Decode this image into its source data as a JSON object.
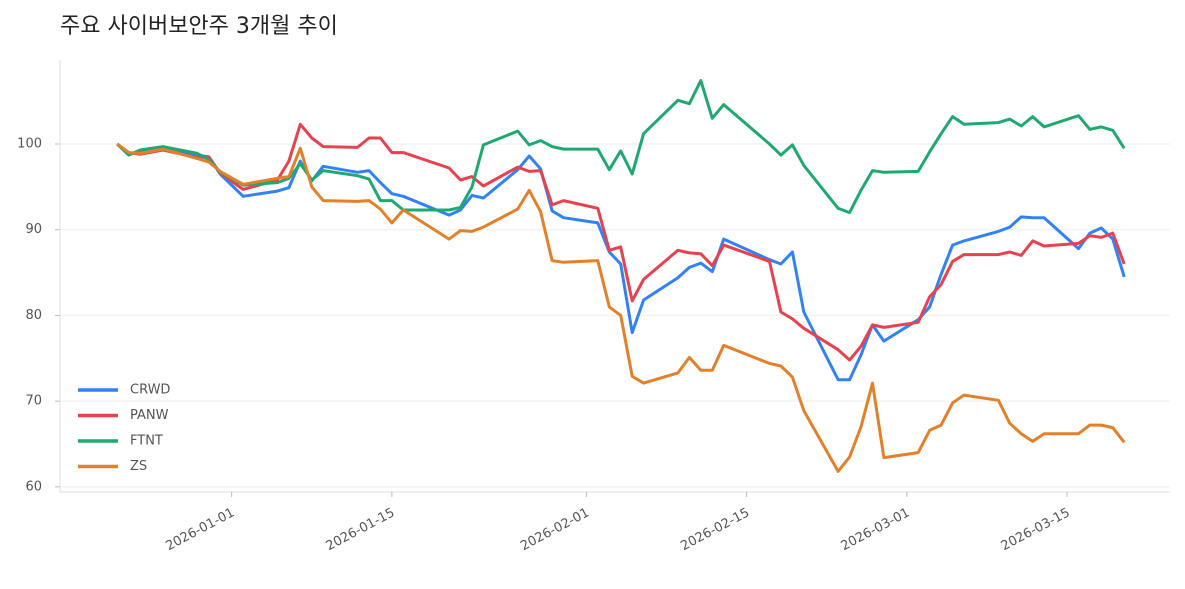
{
  "chart_data": {
    "type": "line",
    "title": "주요 사이버보안주 3개월 추이",
    "x": [
      "2025-12-22",
      "2025-12-23",
      "2025-12-24",
      "2025-12-26",
      "2025-12-29",
      "2025-12-30",
      "2025-12-31",
      "2026-01-02",
      "2026-01-05",
      "2026-01-06",
      "2026-01-07",
      "2026-01-08",
      "2026-01-09",
      "2026-01-12",
      "2026-01-13",
      "2026-01-14",
      "2026-01-15",
      "2026-01-16",
      "2026-01-20",
      "2026-01-21",
      "2026-01-22",
      "2026-01-23",
      "2026-01-26",
      "2026-01-27",
      "2026-01-28",
      "2026-01-29",
      "2026-01-30",
      "2026-02-02",
      "2026-02-03",
      "2026-02-04",
      "2026-02-05",
      "2026-02-06",
      "2026-02-09",
      "2026-02-10",
      "2026-02-11",
      "2026-02-12",
      "2026-02-13",
      "2026-02-17",
      "2026-02-18",
      "2026-02-19",
      "2026-02-20",
      "2026-02-23",
      "2026-02-24",
      "2026-02-25",
      "2026-02-26",
      "2026-02-27",
      "2026-03-02",
      "2026-03-03",
      "2026-03-04",
      "2026-03-05",
      "2026-03-06",
      "2026-03-09",
      "2026-03-10",
      "2026-03-11",
      "2026-03-12",
      "2026-03-13",
      "2026-03-16",
      "2026-03-17",
      "2026-03-18",
      "2026-03-19",
      "2026-03-20"
    ],
    "series": [
      {
        "name": "CRWD",
        "color": "#3182f6",
        "values": [
          100,
          98.8,
          99.2,
          99.5,
          98.7,
          98.5,
          96.5,
          93.9,
          94.5,
          94.9,
          98.0,
          95.7,
          97.4,
          96.7,
          96.9,
          95.5,
          94.2,
          93.9,
          91.7,
          92.3,
          94.0,
          93.7,
          97.0,
          98.6,
          97.1,
          92.2,
          91.4,
          90.8,
          87.4,
          86.0,
          78.0,
          81.8,
          84.4,
          85.6,
          86.1,
          85.1,
          88.9,
          86.5,
          86.0,
          87.4,
          80.4,
          72.5,
          72.5,
          75.4,
          78.9,
          77.0,
          79.5,
          81.0,
          84.8,
          88.2,
          88.7,
          89.8,
          90.3,
          91.5,
          91.4,
          91.4,
          87.8,
          89.6,
          90.2,
          88.9,
          84.5
        ]
      },
      {
        "name": "PANW",
        "color": "#e8414f",
        "values": [
          100,
          99.0,
          98.8,
          99.3,
          98.4,
          98.5,
          96.6,
          94.7,
          95.8,
          98.0,
          102.3,
          100.7,
          99.7,
          99.6,
          100.7,
          100.7,
          99.0,
          99.0,
          97.2,
          95.8,
          96.2,
          95.1,
          97.3,
          96.8,
          96.9,
          92.9,
          93.4,
          92.5,
          87.6,
          88.0,
          81.7,
          84.2,
          87.6,
          87.3,
          87.2,
          85.8,
          88.2,
          86.3,
          80.4,
          79.6,
          78.5,
          76.0,
          74.8,
          76.4,
          78.9,
          78.6,
          79.2,
          82.2,
          83.6,
          86.3,
          87.1,
          87.1,
          87.4,
          87.0,
          88.7,
          88.1,
          88.4,
          89.3,
          89.1,
          89.6,
          86.0
        ]
      },
      {
        "name": "FTNT",
        "color": "#1fa971",
        "values": [
          100,
          98.7,
          99.3,
          99.7,
          98.9,
          98.2,
          96.7,
          95.2,
          95.5,
          96.0,
          97.7,
          95.8,
          96.9,
          96.3,
          95.9,
          93.4,
          93.4,
          92.3,
          92.3,
          92.6,
          95.0,
          99.9,
          101.5,
          99.9,
          100.4,
          99.7,
          99.4,
          99.4,
          97.0,
          99.2,
          96.5,
          101.2,
          105.1,
          104.7,
          107.4,
          103.0,
          104.6,
          100.0,
          98.7,
          99.9,
          97.5,
          92.5,
          92.0,
          94.6,
          96.9,
          96.7,
          96.8,
          99.1,
          101.2,
          103.2,
          102.3,
          102.5,
          102.9,
          102.1,
          103.2,
          102.0,
          103.3,
          101.7,
          102.0,
          101.6,
          99.5
        ]
      },
      {
        "name": "ZS",
        "color": "#e3802a",
        "values": [
          100,
          99.0,
          98.9,
          99.4,
          98.3,
          97.9,
          96.8,
          95.3,
          96.0,
          96.2,
          99.5,
          95.0,
          93.4,
          93.3,
          93.4,
          92.4,
          90.8,
          92.3,
          88.9,
          89.9,
          89.8,
          90.3,
          92.4,
          94.6,
          92.1,
          86.4,
          86.2,
          86.4,
          81.0,
          80.0,
          72.9,
          72.1,
          73.3,
          75.1,
          73.6,
          73.6,
          76.5,
          74.4,
          74.1,
          72.8,
          68.9,
          61.8,
          63.5,
          67.0,
          72.1,
          63.4,
          64.0,
          66.6,
          67.2,
          69.8,
          70.7,
          70.1,
          67.4,
          66.2,
          65.3,
          66.2,
          66.2,
          67.2,
          67.2,
          66.9,
          65.2
        ]
      }
    ],
    "xlim": [
      "2025-12-17",
      "2026-03-24"
    ],
    "xticks": [
      "2026-01-01",
      "2026-01-15",
      "2026-02-01",
      "2026-02-15",
      "2026-03-01",
      "2026-03-15"
    ],
    "ylim": [
      59.4,
      109.8
    ],
    "yticks": [
      60,
      70,
      80,
      90,
      100
    ],
    "grid": true,
    "legend": "lower left"
  }
}
